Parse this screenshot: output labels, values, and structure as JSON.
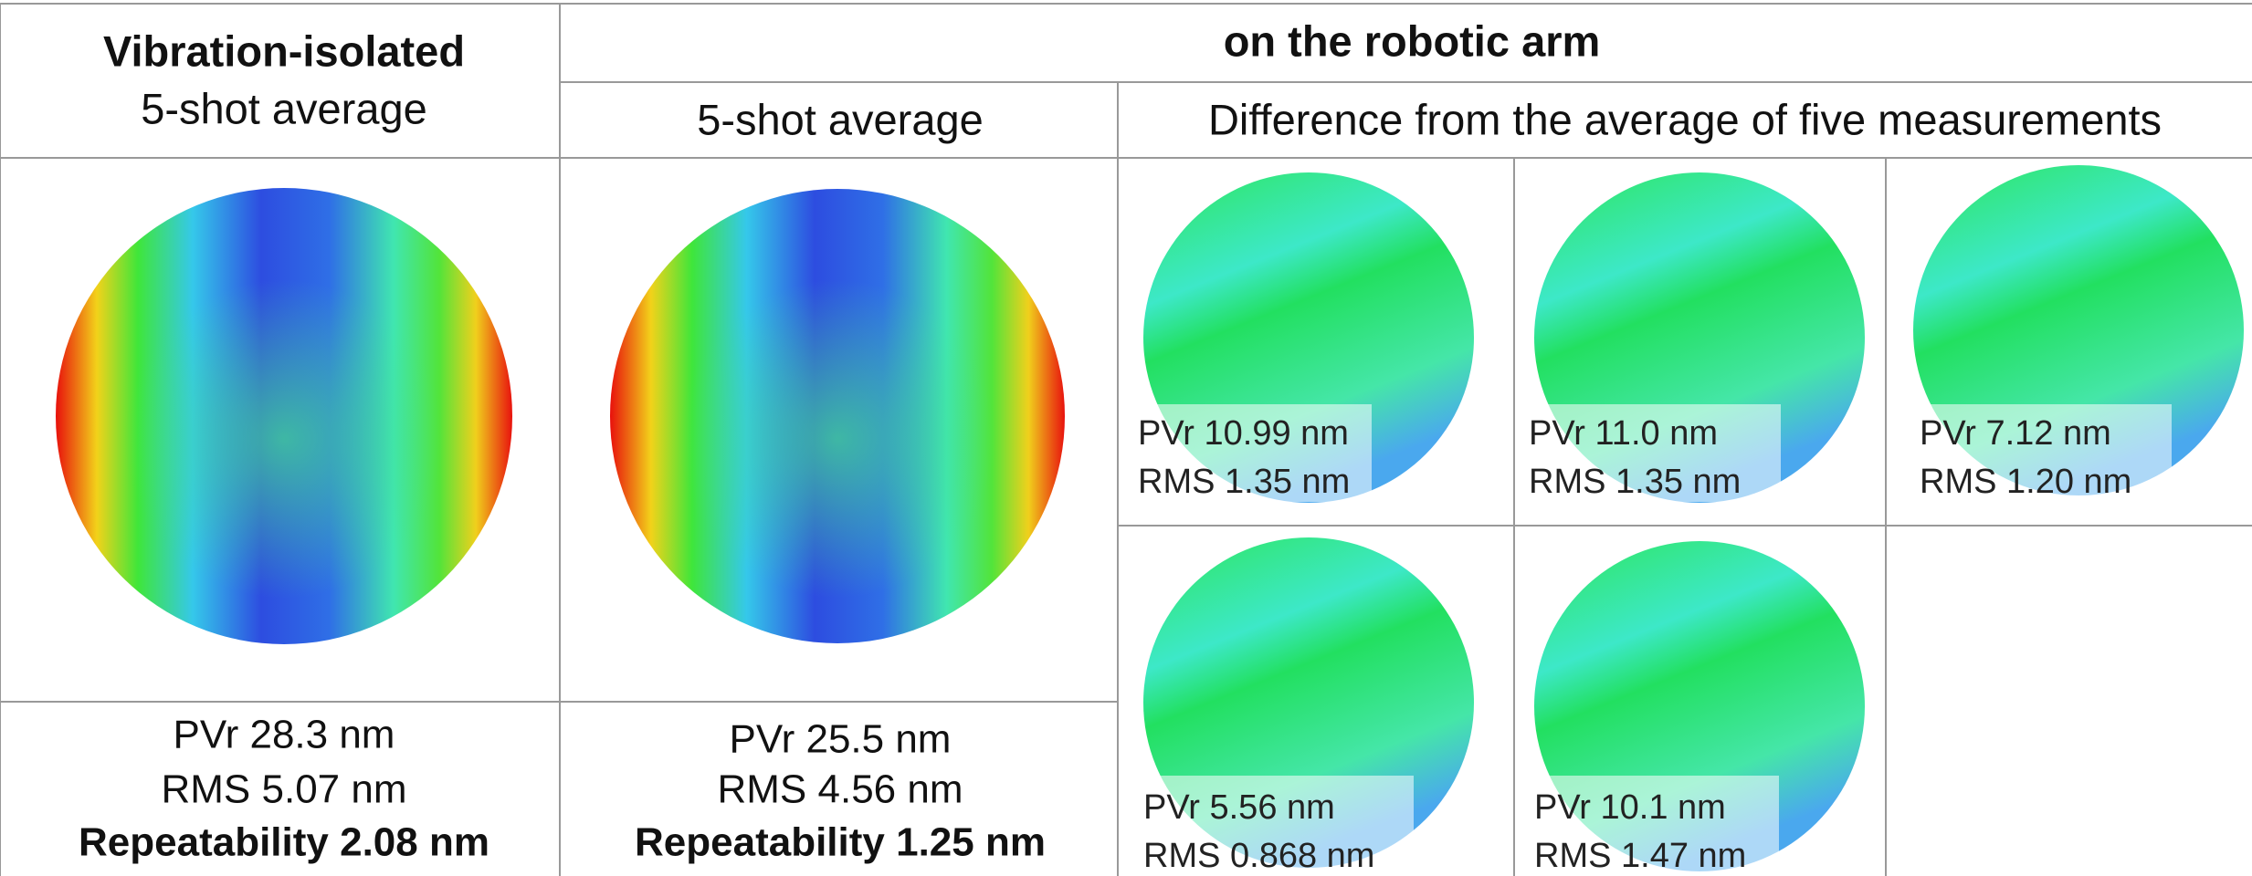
{
  "header": {
    "left_title": "Vibration-isolated",
    "left_subtitle": "5-shot average",
    "right_title": "on the robotic arm",
    "middle_subtitle": "5-shot average",
    "right_subtitle": "Difference from the average of five measurements"
  },
  "stats": [
    {
      "pvr": "PVr 28.3 nm",
      "rms": "RMS 5.07 nm",
      "repeatability": "Repeatability 2.08 nm"
    },
    {
      "pvr": "PVr 25.5 nm",
      "rms": "RMS 4.56 nm",
      "repeatability": "Repeatability 1.25 nm"
    }
  ],
  "differences": [
    {
      "pvr": "PVr 10.99 nm",
      "rms": "RMS 1.35 nm"
    },
    {
      "pvr": "PVr 11.0 nm",
      "rms": "RMS 1.35 nm"
    },
    {
      "pvr": "PVr 7.12 nm",
      "rms": "RMS 1.20 nm"
    },
    {
      "pvr": "PVr 5.56 nm",
      "rms": "RMS 0.868 nm"
    },
    {
      "pvr": "PVr 10.1 nm",
      "rms": "RMS 1.47 nm"
    }
  ]
}
